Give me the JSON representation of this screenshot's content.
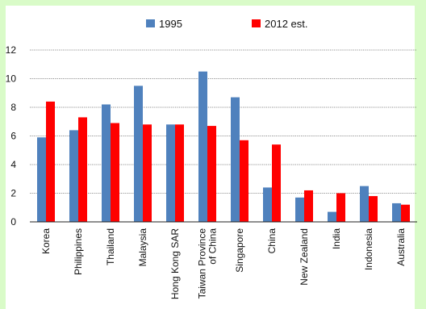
{
  "chart_data": {
    "type": "bar",
    "title": "",
    "xlabel": "",
    "ylabel": "",
    "ylim": [
      0,
      12
    ],
    "yticks": [
      0,
      2,
      4,
      6,
      8,
      10,
      12
    ],
    "ytick_labels": [
      "0",
      "2",
      "4",
      "6",
      "8",
      "10",
      "12"
    ],
    "grid": true,
    "legend_position": "top-center",
    "categories": [
      "Korea",
      "Philippines",
      "Thailand",
      "Malaysia",
      "Hong Kong SAR",
      "Taiwan Province of China",
      "Singapore",
      "China",
      "New Zealand",
      "India",
      "Indonesia",
      "Australia"
    ],
    "category_label_lines": [
      [
        "Korea"
      ],
      [
        "Philippines"
      ],
      [
        "Thailand"
      ],
      [
        "Malaysia"
      ],
      [
        "Hong Kong SAR"
      ],
      [
        "Taiwan Province",
        "of China"
      ],
      [
        "Singapore"
      ],
      [
        "China"
      ],
      [
        "New Zealand"
      ],
      [
        "India"
      ],
      [
        "Indonesia"
      ],
      [
        "Australia"
      ]
    ],
    "series": [
      {
        "name": "1995",
        "color": "#4f81bd",
        "values": [
          5.9,
          6.4,
          8.2,
          9.5,
          6.8,
          10.5,
          8.7,
          2.4,
          1.7,
          0.7,
          2.5,
          1.3
        ]
      },
      {
        "name": "2012 est.",
        "color": "#ff0000",
        "values": [
          8.4,
          7.3,
          6.9,
          6.8,
          6.8,
          6.7,
          5.7,
          5.4,
          2.2,
          2.0,
          1.8,
          1.2
        ]
      }
    ]
  }
}
